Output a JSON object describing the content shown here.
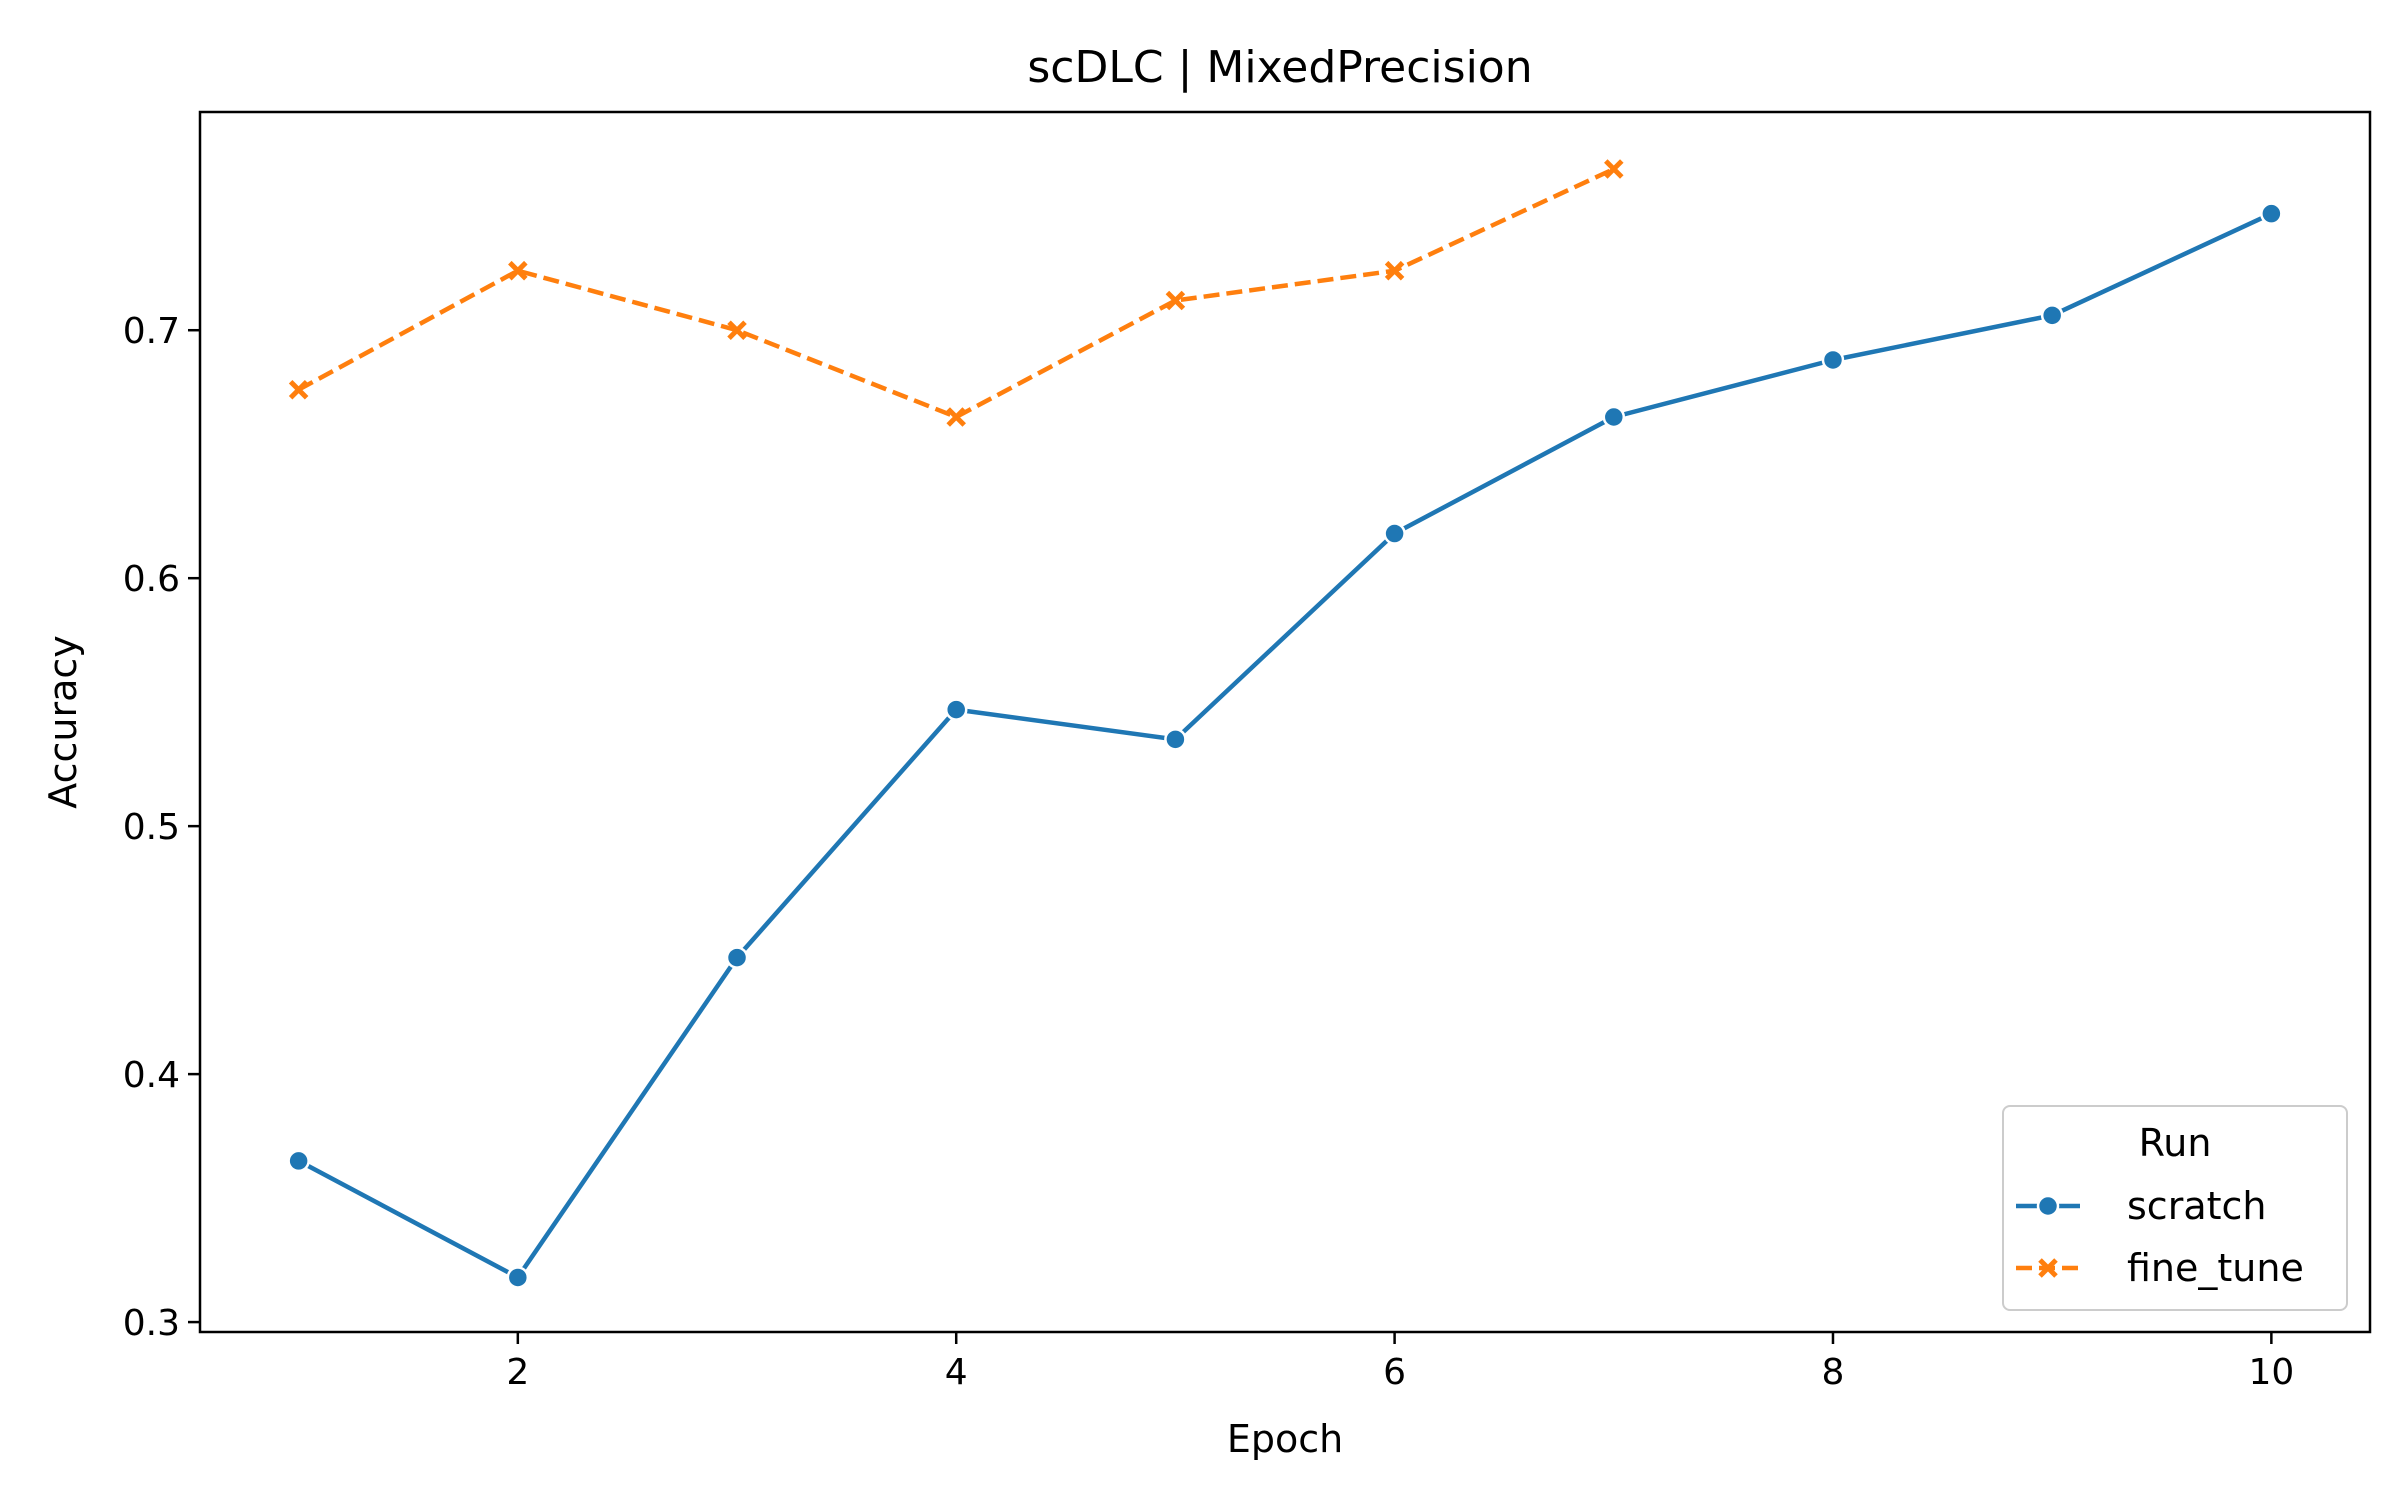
{
  "chart_data": {
    "type": "line",
    "title": "scDLC | MixedPrecision",
    "xlabel": "Epoch",
    "ylabel": "Accuracy",
    "xlim": [
      0.55,
      10.45
    ],
    "ylim": [
      0.296,
      0.788
    ],
    "xticks": [
      2,
      4,
      6,
      8,
      10
    ],
    "xtick_labels": [
      "2",
      "4",
      "6",
      "8",
      "10"
    ],
    "yticks": [
      0.3,
      0.4,
      0.5,
      0.6,
      0.7
    ],
    "ytick_labels": [
      "0.3",
      "0.4",
      "0.5",
      "0.6",
      "0.7"
    ],
    "grid": false,
    "legend": {
      "title": "Run",
      "placement": "lower-right"
    },
    "series": [
      {
        "name": "scratch",
        "color": "#1f77b4",
        "marker": "circle",
        "linestyle": "solid",
        "x": [
          1,
          2,
          3,
          4,
          5,
          6,
          7,
          8,
          9,
          10
        ],
        "values": [
          0.365,
          0.318,
          0.447,
          0.547,
          0.535,
          0.618,
          0.665,
          0.688,
          0.706,
          0.747
        ]
      },
      {
        "name": "fine_tune",
        "color": "#ff7f0e",
        "marker": "x",
        "linestyle": "dashed",
        "x": [
          1,
          2,
          3,
          4,
          5,
          6,
          7
        ],
        "values": [
          0.676,
          0.724,
          0.7,
          0.665,
          0.712,
          0.724,
          0.765
        ]
      }
    ]
  }
}
